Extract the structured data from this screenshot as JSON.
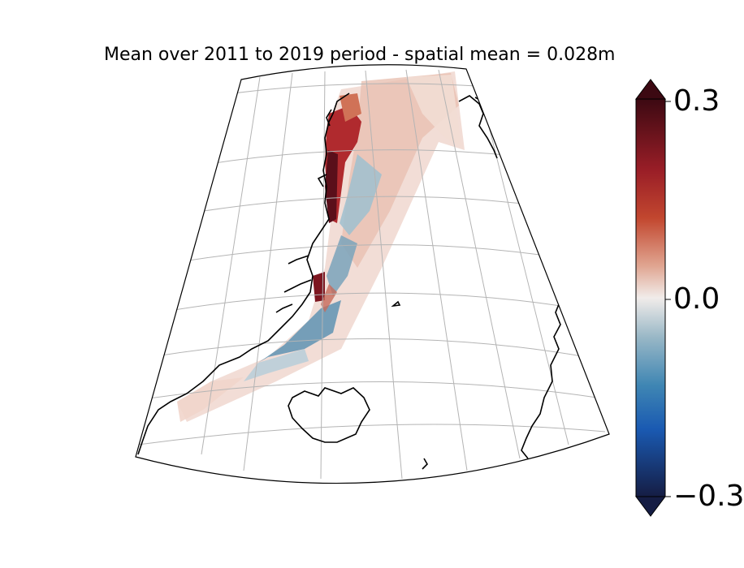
{
  "title": "Mean over 2011 to 2019 period - spatial mean = 0.028m",
  "colorbar": {
    "ticks": [
      "0.3",
      "0.0",
      "−0.3"
    ],
    "min": -0.3,
    "max": 0.3,
    "extend": "both",
    "colormap": "balance",
    "colors": {
      "max": "#3c0912",
      "high": "#b02a2e",
      "mid_high": "#e2a089",
      "zero": "#f1ecea",
      "mid_low": "#8fb0c0",
      "low": "#1c5fb0",
      "min": "#151d44"
    }
  },
  "map": {
    "region": "Greenland east coast, Iceland, Svalbard",
    "projection": "conic",
    "gridlines": true
  }
}
